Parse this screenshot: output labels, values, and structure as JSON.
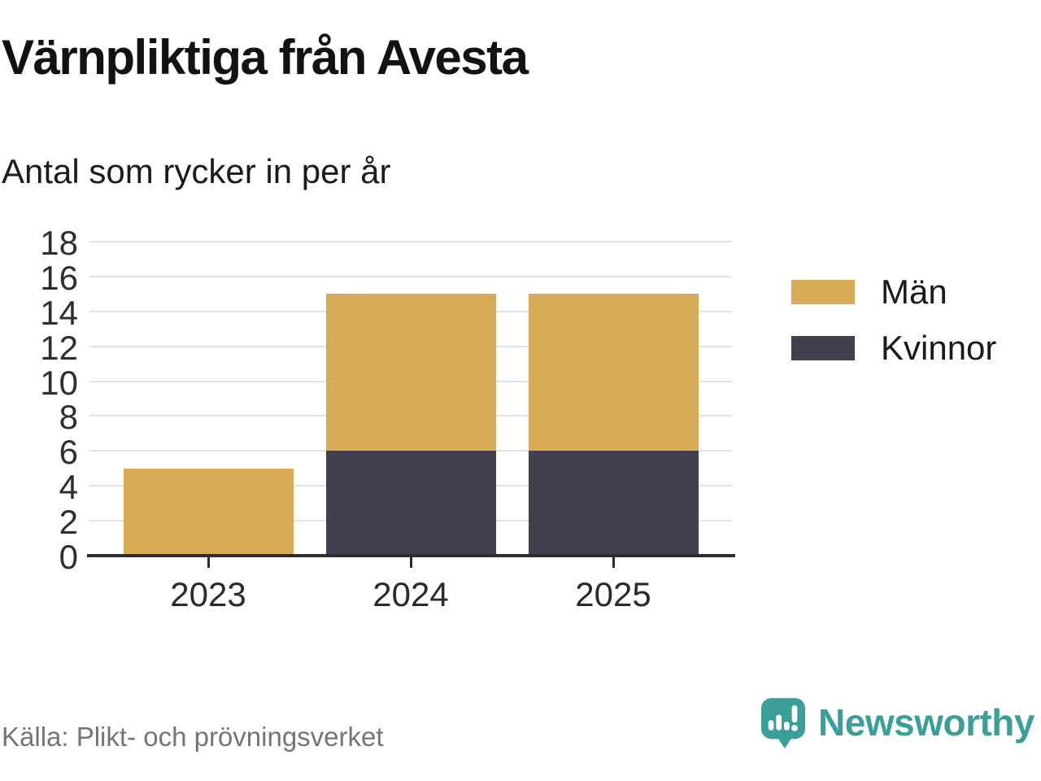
{
  "header": {
    "title": "Värnpliktiga från Avesta",
    "subtitle": "Antal som rycker in per år"
  },
  "chart_data": {
    "type": "bar",
    "stacked": true,
    "title": "Värnpliktiga från Avesta",
    "subtitle": "Antal som rycker in per år",
    "categories": [
      "2023",
      "2024",
      "2025"
    ],
    "series": [
      {
        "name": "Kvinnor",
        "color": "#423F4E",
        "values": [
          0,
          6,
          6
        ]
      },
      {
        "name": "Män",
        "color": "#D8AB56",
        "values": [
          5,
          9,
          9
        ]
      }
    ],
    "stack_totals": [
      5,
      15,
      15
    ],
    "legend": [
      {
        "label": "Män",
        "color": "#D8AB56"
      },
      {
        "label": "Kvinnor",
        "color": "#423F4E"
      }
    ],
    "legend_position": "right",
    "xlabel": "",
    "ylabel": "",
    "ylim": [
      0,
      18
    ],
    "yticks": [
      0,
      2,
      4,
      6,
      8,
      10,
      12,
      14,
      16,
      18
    ],
    "grid": true
  },
  "footer": {
    "source": "Källa: Plikt- och prövningsverket",
    "brand": "Newsworthy",
    "brand_color": "#3C9E99"
  },
  "colors": {
    "men": "#D8AB56",
    "women": "#423F4E",
    "axis": "#2D2C34",
    "gridline": "#E2E2E2",
    "brand_teal": "#3C9E99"
  }
}
